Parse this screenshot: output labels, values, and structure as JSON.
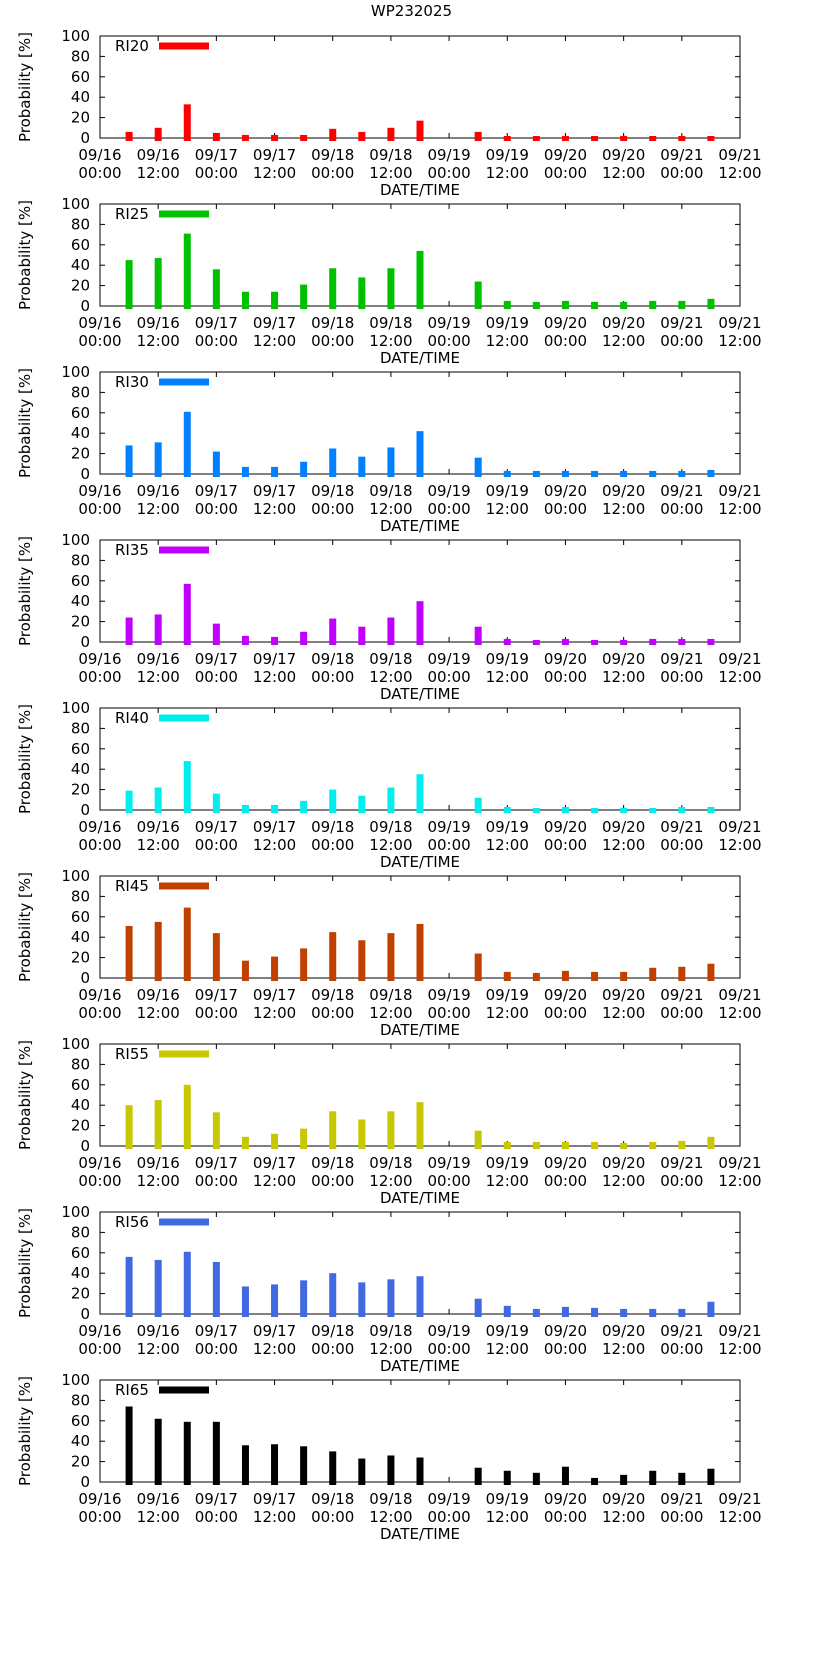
{
  "chart_data": {
    "type": "bar",
    "title": "WP232025",
    "xlabel": "DATE/TIME",
    "ylabel": "Probability [%]",
    "ylim": [
      0,
      100
    ],
    "yticks": [
      0,
      20,
      40,
      60,
      80,
      100
    ],
    "x_range_hours": [
      0,
      132
    ],
    "x_tick_hours": [
      0,
      12,
      24,
      36,
      48,
      60,
      72,
      84,
      96,
      108,
      120,
      132
    ],
    "x_tick_labels": [
      [
        "09/16",
        "00:00"
      ],
      [
        "09/16",
        "12:00"
      ],
      [
        "09/17",
        "00:00"
      ],
      [
        "09/17",
        "12:00"
      ],
      [
        "09/18",
        "00:00"
      ],
      [
        "09/18",
        "12:00"
      ],
      [
        "09/19",
        "00:00"
      ],
      [
        "09/19",
        "12:00"
      ],
      [
        "09/20",
        "00:00"
      ],
      [
        "09/20",
        "12:00"
      ],
      [
        "09/21",
        "00:00"
      ],
      [
        "09/21",
        "12:00"
      ]
    ],
    "x_hours": [
      6,
      12,
      18,
      24,
      30,
      36,
      42,
      48,
      54,
      60,
      66,
      72,
      78,
      84,
      90,
      96,
      102,
      108,
      114,
      120,
      126
    ],
    "legend_position": "top-left",
    "series": [
      {
        "name": "RI20",
        "color": "#ff0000",
        "values": [
          6,
          10,
          33,
          5,
          3,
          3,
          3,
          9,
          6,
          10,
          17,
          null,
          6,
          2,
          2,
          2,
          2,
          2,
          2,
          2,
          2
        ]
      },
      {
        "name": "RI25",
        "color": "#00c000",
        "values": [
          45,
          47,
          71,
          36,
          14,
          14,
          21,
          37,
          28,
          37,
          54,
          null,
          24,
          5,
          4,
          5,
          4,
          4,
          5,
          5,
          7
        ]
      },
      {
        "name": "RI30",
        "color": "#0080ff",
        "values": [
          28,
          31,
          61,
          22,
          7,
          7,
          12,
          25,
          17,
          26,
          42,
          null,
          16,
          3,
          3,
          3,
          3,
          3,
          3,
          3,
          4
        ]
      },
      {
        "name": "RI35",
        "color": "#c000ff",
        "values": [
          24,
          27,
          57,
          18,
          6,
          5,
          10,
          23,
          15,
          24,
          40,
          null,
          15,
          3,
          2,
          3,
          2,
          2,
          3,
          3,
          3
        ]
      },
      {
        "name": "RI40",
        "color": "#00eeee",
        "values": [
          19,
          22,
          48,
          16,
          5,
          5,
          9,
          20,
          14,
          22,
          35,
          null,
          12,
          3,
          2,
          3,
          2,
          2,
          2,
          3,
          3
        ]
      },
      {
        "name": "RI45",
        "color": "#c04000",
        "values": [
          51,
          55,
          69,
          44,
          17,
          21,
          29,
          45,
          37,
          44,
          53,
          null,
          24,
          6,
          5,
          7,
          6,
          6,
          10,
          11,
          14
        ]
      },
      {
        "name": "RI55",
        "color": "#c8c800",
        "values": [
          40,
          45,
          60,
          33,
          9,
          12,
          17,
          34,
          26,
          34,
          43,
          null,
          15,
          4,
          4,
          4,
          4,
          3,
          4,
          5,
          9
        ]
      },
      {
        "name": "RI56",
        "color": "#4169e1",
        "values": [
          56,
          53,
          61,
          51,
          27,
          29,
          33,
          40,
          31,
          34,
          37,
          null,
          15,
          8,
          5,
          7,
          6,
          5,
          5,
          5,
          12
        ]
      },
      {
        "name": "RI65",
        "color": "#000000",
        "values": [
          74,
          62,
          59,
          59,
          36,
          37,
          35,
          30,
          23,
          26,
          24,
          null,
          14,
          11,
          9,
          15,
          4,
          7,
          11,
          9,
          13
        ]
      }
    ]
  }
}
